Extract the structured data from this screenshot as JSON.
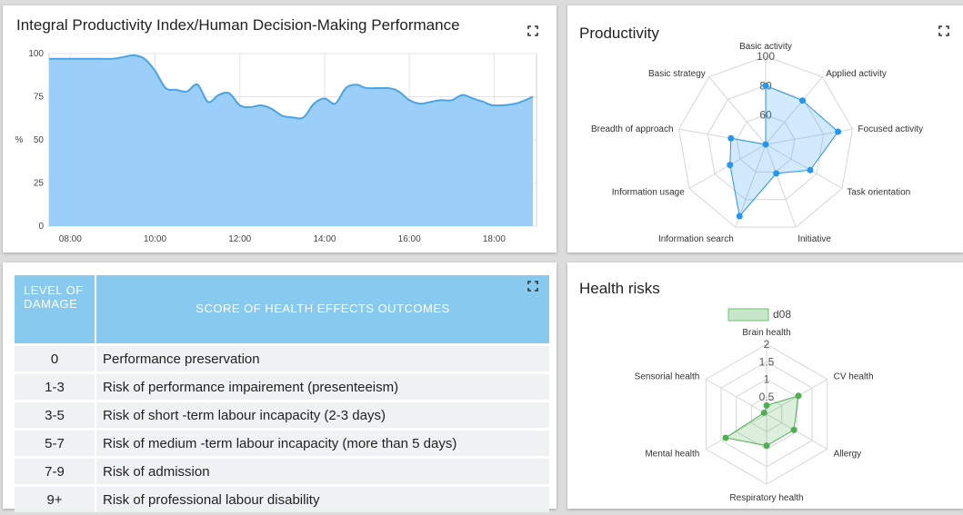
{
  "productivity_chart": {
    "title": "Integral Productivity Index/Human Decision-Making Performance",
    "chart_data": {
      "type": "area",
      "ylabel": "%",
      "xlabel": "",
      "ylim": [
        0,
        100
      ],
      "yticks": [
        "0",
        "25",
        "50",
        "75",
        "100"
      ],
      "xticks": [
        "08:00",
        "10:00",
        "12:00",
        "14:00",
        "16:00",
        "18:00"
      ],
      "x_range": [
        "07:30",
        "19:00"
      ],
      "color": "#90caf9",
      "line_color": "#4aa3e8",
      "series": [
        {
          "name": "",
          "x": [
            "07:30",
            "08:00",
            "08:30",
            "09:00",
            "09:15",
            "09:30",
            "09:45",
            "10:00",
            "10:15",
            "10:30",
            "10:45",
            "11:00",
            "11:15",
            "11:30",
            "11:45",
            "12:00",
            "12:15",
            "12:30",
            "12:45",
            "13:00",
            "13:15",
            "13:30",
            "13:45",
            "14:00",
            "14:15",
            "14:30",
            "14:45",
            "15:00",
            "15:30",
            "15:45",
            "16:00",
            "16:15",
            "16:30",
            "16:45",
            "17:00",
            "17:15",
            "17:30",
            "17:45",
            "18:00",
            "18:30",
            "18:55"
          ],
          "values": [
            97,
            97,
            97,
            97,
            98,
            99,
            97,
            90,
            80,
            79,
            78,
            82,
            72,
            76,
            77,
            70,
            69,
            70,
            68,
            64,
            63,
            63,
            71,
            74,
            71,
            80,
            82,
            80,
            80,
            78,
            73,
            71,
            72,
            73,
            73,
            76,
            74,
            72,
            70,
            71,
            75
          ]
        }
      ]
    }
  },
  "radar_productivity": {
    "title": "Productivity",
    "chart_data": {
      "type": "radar",
      "axes": [
        "Basic activity",
        "Applied activity",
        "Focused activity",
        "Task orientation",
        "Initiative",
        "Information search",
        "Information usage",
        "Breadth of approach",
        "Basic strategy"
      ],
      "ticks": [
        "60",
        "80",
        "100"
      ],
      "range": [
        40,
        100
      ],
      "series": [
        {
          "name": "",
          "values": [
            80,
            79,
            90,
            75,
            61,
            92,
            68,
            64,
            40
          ]
        }
      ],
      "color": "#2196f3"
    }
  },
  "health_table": {
    "headers": {
      "level": "LEVEL OF DAMAGE",
      "score": "SCORE OF HEALTH EFFECTS OUTCOMES"
    },
    "rows": [
      {
        "level": "0",
        "desc": "Performance preservation"
      },
      {
        "level": "1-3",
        "desc": "Risk of performance impairement (presenteeism)"
      },
      {
        "level": "3-5",
        "desc": "Risk of short -term labour incapacity (2-3 days)"
      },
      {
        "level": "5-7",
        "desc": "Risk of medium -term labour incapacity (more than 5 days)"
      },
      {
        "level": "7-9",
        "desc": "Risk of admission"
      },
      {
        "level": "9+",
        "desc": "Risk of professional labour disability"
      }
    ]
  },
  "radar_health": {
    "title": "Health risks",
    "chart_data": {
      "type": "radar",
      "axes": [
        "Brain health",
        "CV health",
        "Allergy",
        "Respiratory health",
        "Mental health",
        "Sensorial health"
      ],
      "ticks": [
        "0.5",
        "1",
        "1.5",
        "2"
      ],
      "range": [
        0,
        2
      ],
      "legend": "d08",
      "legend_position": "top",
      "series": [
        {
          "name": "d08",
          "values": [
            0.25,
            1.05,
            0.9,
            0.9,
            1.35,
            0.08
          ]
        }
      ],
      "color": "#4caf50"
    }
  }
}
